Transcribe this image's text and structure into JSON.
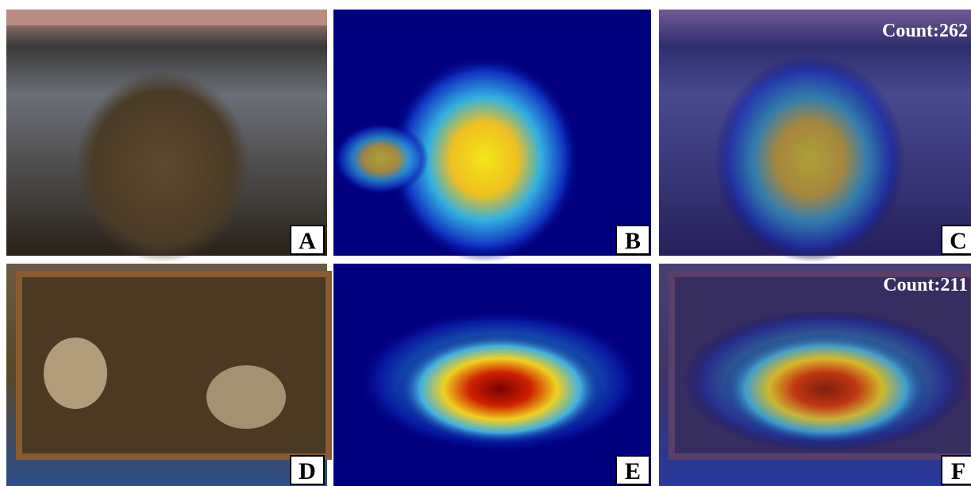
{
  "panels": [
    {
      "label": "A"
    },
    {
      "label": "B"
    },
    {
      "label": "C",
      "count": "Count:262"
    },
    {
      "label": "D"
    },
    {
      "label": "E"
    },
    {
      "label": "F",
      "count": "Count:211"
    }
  ]
}
